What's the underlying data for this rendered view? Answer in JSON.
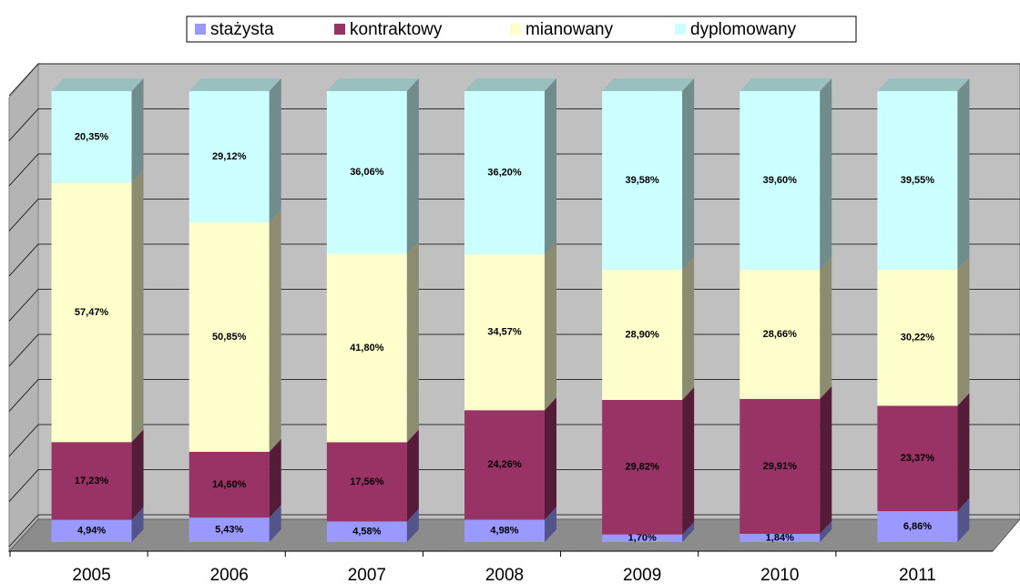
{
  "chart_data": {
    "type": "bar3d_stacked",
    "categories": [
      "2005",
      "2006",
      "2007",
      "2008",
      "2009",
      "2010",
      "2011"
    ],
    "series": [
      {
        "name": "stażysta",
        "color": "#9999ff",
        "values": [
          4.94,
          5.43,
          4.58,
          4.98,
          1.7,
          1.84,
          6.86
        ],
        "value_labels": [
          "4,94%",
          "5,43%",
          "4,58%",
          "4,98%",
          "1,70%",
          "1,84%",
          "6,86%"
        ]
      },
      {
        "name": "kontraktowy",
        "color": "#993366",
        "values": [
          17.23,
          14.6,
          17.56,
          24.26,
          29.82,
          29.91,
          23.37
        ],
        "value_labels": [
          "17,23%",
          "14,60%",
          "17,56%",
          "24,26%",
          "29,82%",
          "29,91%",
          "23,37%"
        ]
      },
      {
        "name": "mianowany",
        "color": "#ffffcc",
        "values": [
          57.47,
          50.85,
          41.8,
          34.57,
          28.9,
          28.66,
          30.22
        ],
        "value_labels": [
          "57,47%",
          "50,85%",
          "41,80%",
          "34,57%",
          "28,90%",
          "28,66%",
          "30,22%"
        ]
      },
      {
        "name": "dyplomowany",
        "color": "#ccffff",
        "values": [
          20.35,
          29.12,
          36.06,
          36.2,
          39.58,
          39.6,
          39.55
        ],
        "value_labels": [
          "20,35%",
          "29,12%",
          "36,06%",
          "36,20%",
          "39,58%",
          "39,60%",
          "39,55%"
        ]
      }
    ],
    "ylim": [
      0,
      100
    ],
    "yticks": [
      0,
      10,
      20,
      30,
      40,
      50,
      60,
      70,
      80,
      90,
      100
    ],
    "grid": true,
    "legend": "top"
  }
}
